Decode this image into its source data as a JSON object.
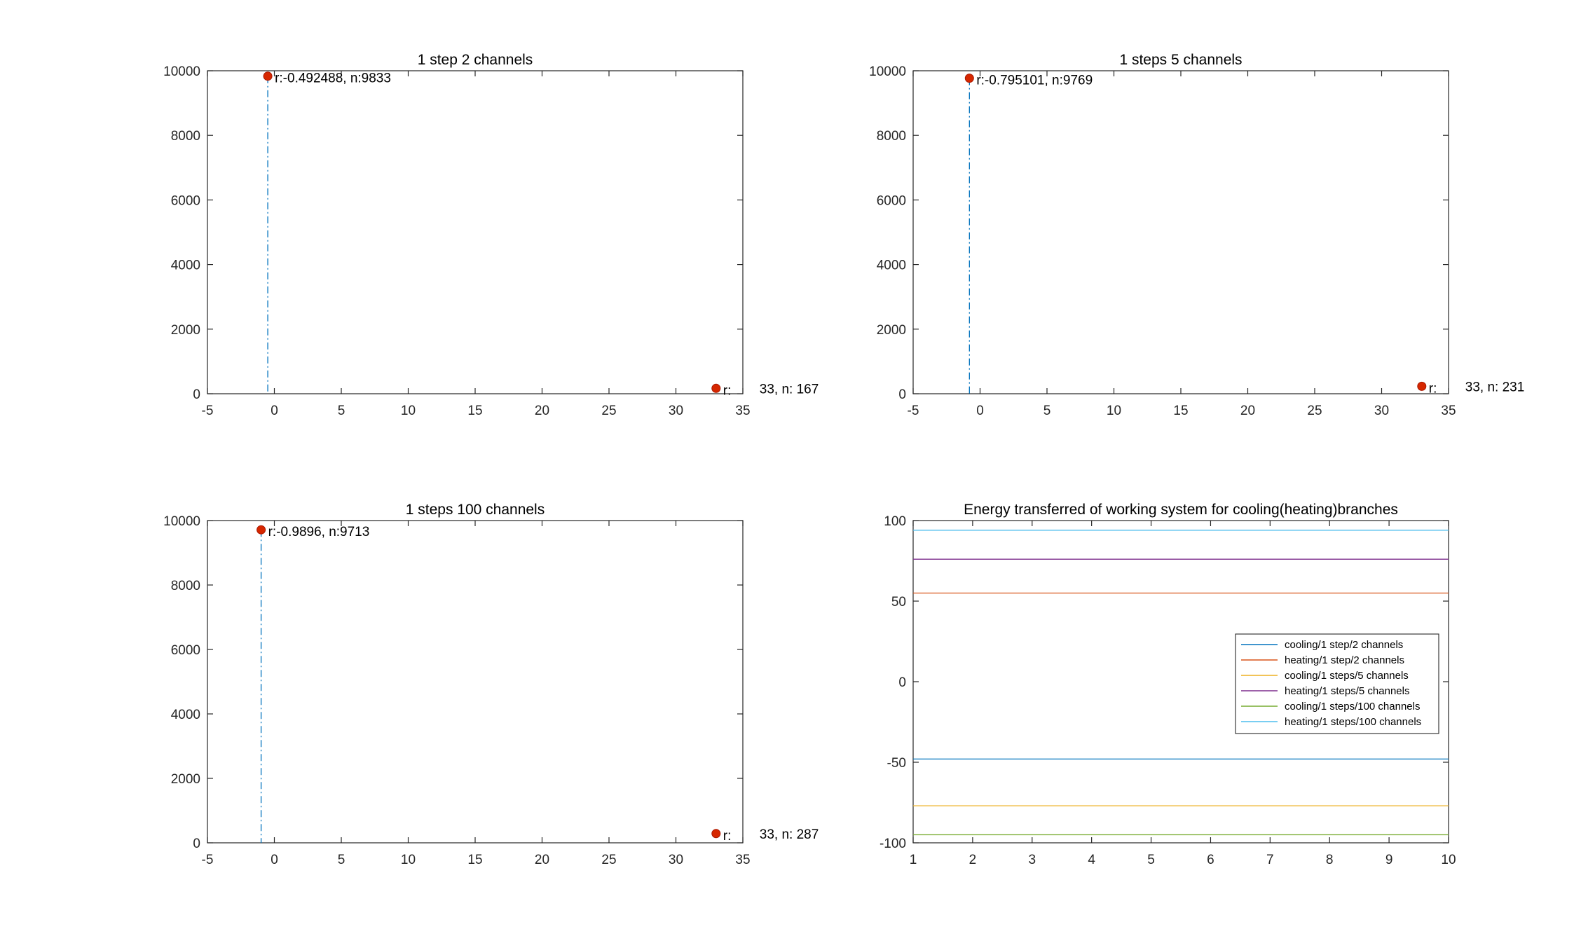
{
  "figure": {
    "background": "#ffffff"
  },
  "colors": {
    "axis": "#262626",
    "marker_fill": "#d62700",
    "marker_edge": "#a81800",
    "stem": "#0072bd",
    "series": [
      "#0072bd",
      "#d95319",
      "#edb120",
      "#7e2f8e",
      "#77ac30",
      "#4dbeee"
    ]
  },
  "chart_data": [
    {
      "id": "p1",
      "type": "scatter",
      "title": "1 step 2 channels",
      "xlim": [
        -5,
        35
      ],
      "ylim": [
        0,
        10000
      ],
      "xticks": [
        -5,
        0,
        5,
        10,
        15,
        20,
        25,
        30,
        35
      ],
      "yticks": [
        0,
        2000,
        4000,
        6000,
        8000,
        10000
      ],
      "points": [
        {
          "x": -0.492488,
          "y": 9833,
          "label": "r:-0.492488, n:9833"
        },
        {
          "x": 33,
          "y": 167,
          "label": "r:",
          "label2": "33, n: 167"
        }
      ],
      "stem_x": -0.492488
    },
    {
      "id": "p2",
      "type": "scatter",
      "title": "1 steps 5 channels",
      "xlim": [
        -5,
        35
      ],
      "ylim": [
        0,
        10000
      ],
      "xticks": [
        -5,
        0,
        5,
        10,
        15,
        20,
        25,
        30,
        35
      ],
      "yticks": [
        0,
        2000,
        4000,
        6000,
        8000,
        10000
      ],
      "points": [
        {
          "x": -0.795101,
          "y": 9769,
          "label": "r:-0.795101, n:9769"
        },
        {
          "x": 33,
          "y": 231,
          "label": "r:",
          "label2": "33, n: 231"
        }
      ],
      "stem_x": -0.795101
    },
    {
      "id": "p3",
      "type": "scatter",
      "title": "1 steps 100 channels",
      "xlim": [
        -5,
        35
      ],
      "ylim": [
        0,
        10000
      ],
      "xticks": [
        -5,
        0,
        5,
        10,
        15,
        20,
        25,
        30,
        35
      ],
      "yticks": [
        0,
        2000,
        4000,
        6000,
        8000,
        10000
      ],
      "points": [
        {
          "x": -0.9896,
          "y": 9713,
          "label": "r:-0.9896, n:9713"
        },
        {
          "x": 33,
          "y": 287,
          "label": "r:",
          "label2": "33, n: 287"
        }
      ],
      "stem_x": -0.9896
    },
    {
      "id": "p4",
      "type": "line",
      "title": "Energy transferred of working system for cooling(heating)branches",
      "xlim": [
        1,
        10
      ],
      "ylim": [
        -100,
        100
      ],
      "xticks": [
        1,
        2,
        3,
        4,
        5,
        6,
        7,
        8,
        9,
        10
      ],
      "yticks": [
        -100,
        -50,
        0,
        50,
        100
      ],
      "legend_position": "right",
      "series": [
        {
          "name": "cooling/1 step/2 channels",
          "value": -48
        },
        {
          "name": "heating/1 step/2 channels",
          "value": 55
        },
        {
          "name": "cooling/1 steps/5 channels",
          "value": -77
        },
        {
          "name": "heating/1 steps/5 channels",
          "value": 76
        },
        {
          "name": "cooling/1 steps/100 channels",
          "value": -95
        },
        {
          "name": "heating/1 steps/100 channels",
          "value": 94
        }
      ]
    }
  ]
}
